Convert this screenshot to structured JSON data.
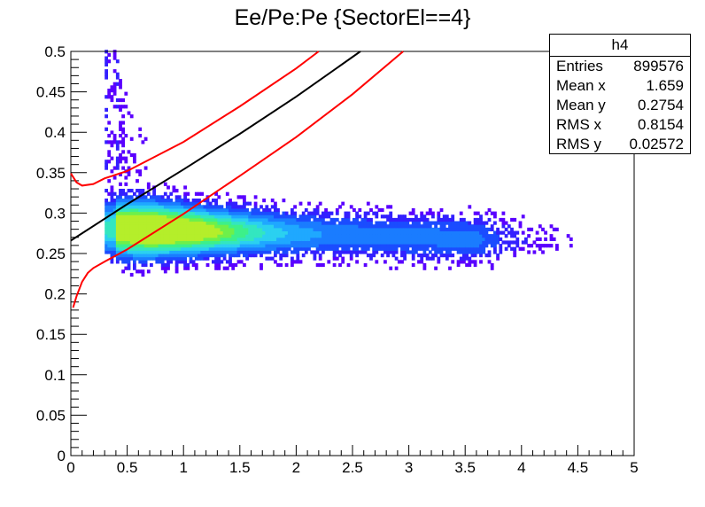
{
  "chart_data": {
    "type": "heatmap",
    "title": "Ee/Pe:Pe {SectorEl==4}",
    "xlabel": "",
    "ylabel": "",
    "xlim": [
      0,
      5
    ],
    "ylim": [
      0,
      0.5
    ],
    "x_ticks": [
      "0",
      "0.5",
      "1",
      "1.5",
      "2",
      "2.5",
      "3",
      "3.5",
      "4",
      "4.5",
      "5"
    ],
    "y_ticks": [
      "0",
      "0.05",
      "0.1",
      "0.15",
      "0.2",
      "0.25",
      "0.3",
      "0.35",
      "0.4",
      "0.45",
      "0.5"
    ],
    "grid": false,
    "colormap": "rainbow",
    "density_band": {
      "x_range": [
        0.3,
        4.6
      ],
      "y_floor": 0.215,
      "center_y": 0.275,
      "peak_x": 0.7
    },
    "series": [
      {
        "color": "#ff0000",
        "x": [
          0.0,
          0.05,
          0.1,
          0.2,
          0.3,
          0.5,
          1.0,
          1.5,
          2.0,
          2.2
        ],
        "y": [
          0.349,
          0.338,
          0.334,
          0.336,
          0.343,
          0.352,
          0.388,
          0.432,
          0.479,
          0.5
        ]
      },
      {
        "color": "#000000",
        "x": [
          0.0,
          0.5,
          1.0,
          1.5,
          2.0,
          2.57
        ],
        "y": [
          0.266,
          0.311,
          0.354,
          0.398,
          0.444,
          0.5
        ]
      },
      {
        "color": "#ff0000",
        "x": [
          0.02,
          0.05,
          0.1,
          0.15,
          0.2,
          0.3,
          0.5,
          1.0,
          1.5,
          2.0,
          2.5,
          2.95
        ],
        "y": [
          0.183,
          0.197,
          0.215,
          0.226,
          0.232,
          0.24,
          0.255,
          0.299,
          0.346,
          0.394,
          0.447,
          0.5
        ]
      }
    ]
  },
  "stats": {
    "name": "h4",
    "rows": [
      {
        "label": "Entries",
        "value": "899576"
      },
      {
        "label": "Mean x",
        "value": "1.659"
      },
      {
        "label": "Mean y",
        "value": "0.2754"
      },
      {
        "label": "RMS x",
        "value": "0.8154"
      },
      {
        "label": "RMS y",
        "value": "0.02572"
      }
    ]
  }
}
